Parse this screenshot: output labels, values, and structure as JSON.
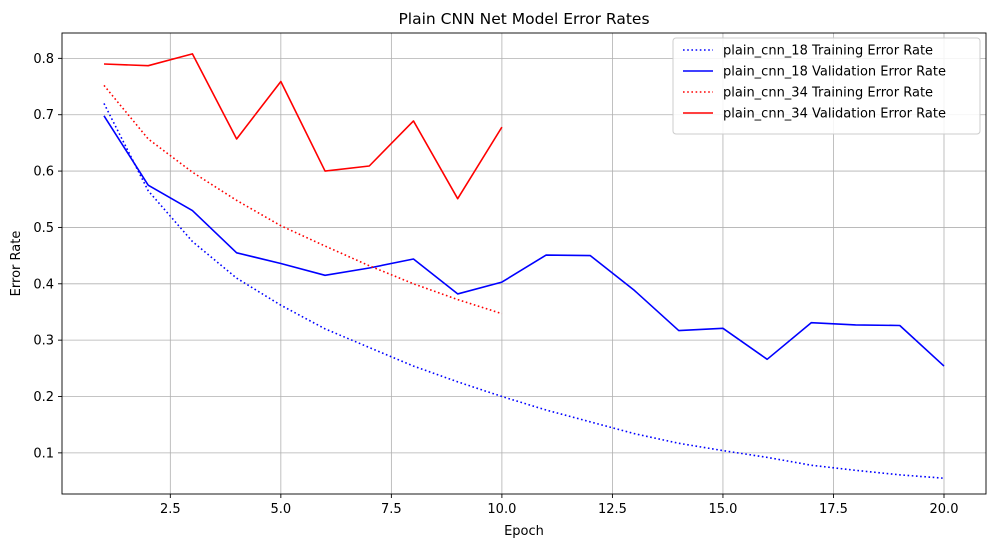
{
  "chart_data": {
    "type": "line",
    "title": "Plain CNN Net Model Error Rates",
    "xlabel": "Epoch",
    "ylabel": "Error Rate",
    "xlim": [
      0.05,
      20.95
    ],
    "ylim": [
      0.027,
      0.845
    ],
    "xticks": [
      2.5,
      5.0,
      7.5,
      10.0,
      12.5,
      15.0,
      17.5,
      20.0
    ],
    "xtick_labels": [
      "2.5",
      "5.0",
      "7.5",
      "10.0",
      "12.5",
      "15.0",
      "17.5",
      "20.0"
    ],
    "yticks": [
      0.1,
      0.2,
      0.3,
      0.4,
      0.5,
      0.6,
      0.7,
      0.8
    ],
    "ytick_labels": [
      "0.1",
      "0.2",
      "0.3",
      "0.4",
      "0.5",
      "0.6",
      "0.7",
      "0.8"
    ],
    "grid": true,
    "legend_position": "top-right",
    "series": [
      {
        "name": "plain_cnn_18 Training Error Rate",
        "color": "#0000ff",
        "style": "dotted",
        "x": [
          1,
          2,
          3,
          4,
          5,
          6,
          7,
          8,
          9,
          10,
          11,
          12,
          13,
          14,
          15,
          16,
          17,
          18,
          19,
          20
        ],
        "y": [
          0.72,
          0.565,
          0.475,
          0.41,
          0.362,
          0.32,
          0.287,
          0.254,
          0.226,
          0.2,
          0.176,
          0.155,
          0.134,
          0.117,
          0.104,
          0.092,
          0.078,
          0.069,
          0.061,
          0.055
        ]
      },
      {
        "name": "plain_cnn_18 Validation Error Rate",
        "color": "#0000ff",
        "style": "solid",
        "x": [
          1,
          2,
          3,
          4,
          5,
          6,
          7,
          8,
          9,
          10,
          11,
          12,
          13,
          14,
          15,
          16,
          17,
          18,
          19,
          20
        ],
        "y": [
          0.698,
          0.575,
          0.53,
          0.455,
          0.436,
          0.415,
          0.428,
          0.444,
          0.382,
          0.403,
          0.451,
          0.45,
          0.388,
          0.317,
          0.321,
          0.266,
          0.331,
          0.327,
          0.326,
          0.254
        ]
      },
      {
        "name": "plain_cnn_34 Training Error Rate",
        "color": "#ff0000",
        "style": "dotted",
        "x": [
          1,
          2,
          3,
          4,
          5,
          6,
          7,
          8,
          9,
          10
        ],
        "y": [
          0.752,
          0.657,
          0.598,
          0.548,
          0.503,
          0.467,
          0.432,
          0.4,
          0.372,
          0.347
        ]
      },
      {
        "name": "plain_cnn_34 Validation Error Rate",
        "color": "#ff0000",
        "style": "solid",
        "x": [
          1,
          2,
          3,
          4,
          5,
          6,
          7,
          8,
          9,
          10
        ],
        "y": [
          0.79,
          0.787,
          0.808,
          0.657,
          0.759,
          0.6,
          0.609,
          0.689,
          0.551,
          0.678
        ]
      }
    ]
  }
}
